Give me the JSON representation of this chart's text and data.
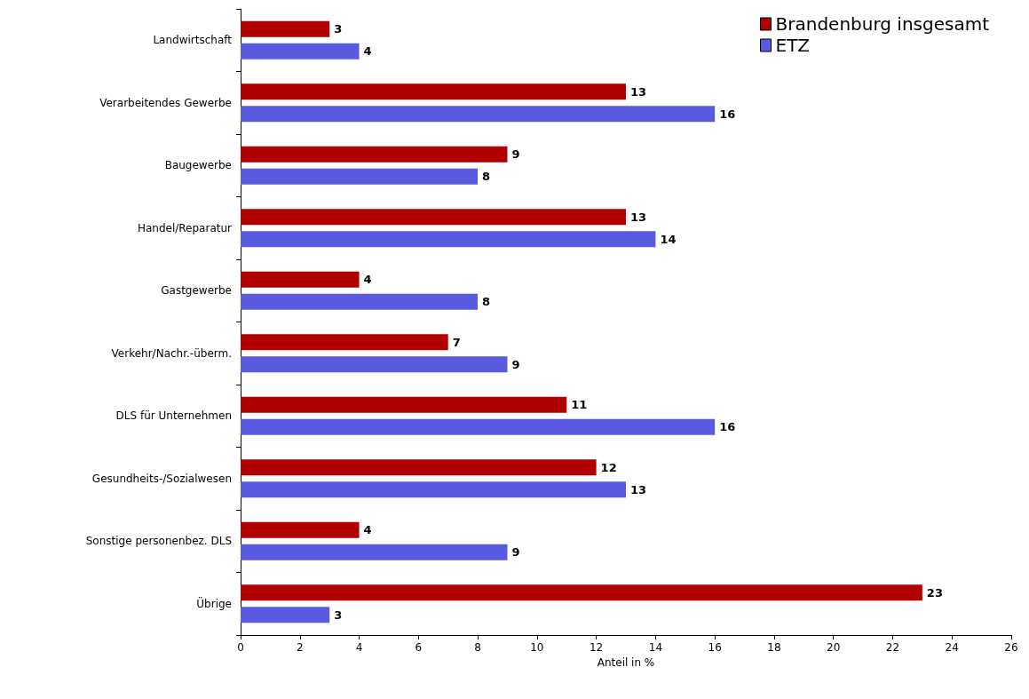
{
  "chart_data": {
    "type": "bar",
    "orientation": "horizontal",
    "xlabel": "Anteil in %",
    "categories": [
      "Landwirtschaft",
      "Verarbeitendes Gewerbe",
      "Baugewerbe",
      "Handel/Reparatur",
      "Gastgewerbe",
      "Verkehr/Nachr.-überm.",
      "DLS für Unternehmen",
      "Gesundheits-/Sozialwesen",
      "Sonstige personenbez. DLS",
      "Übrige"
    ],
    "series": [
      {
        "name": "Brandenburg insgesamt",
        "color": "#b00000",
        "values": [
          3,
          13,
          9,
          13,
          4,
          7,
          11,
          12,
          4,
          23
        ]
      },
      {
        "name": "ETZ",
        "color": "#5a5ae0",
        "values": [
          4,
          16,
          8,
          14,
          8,
          9,
          16,
          13,
          9,
          3
        ]
      }
    ],
    "xlim": [
      0,
      26
    ],
    "xticks": [
      0,
      2,
      4,
      6,
      8,
      10,
      12,
      14,
      16,
      18,
      20,
      22,
      24,
      26
    ],
    "grid": false,
    "legend": "top right",
    "data_labels": true
  }
}
